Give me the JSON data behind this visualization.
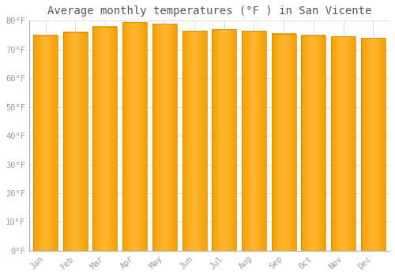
{
  "title": "Average monthly temperatures (°F ) in San Vicente",
  "months": [
    "Jan",
    "Feb",
    "Mar",
    "Apr",
    "May",
    "Jun",
    "Jul",
    "Aug",
    "Sep",
    "Oct",
    "Nov",
    "Dec"
  ],
  "values": [
    75,
    76,
    78,
    79.5,
    79,
    76.5,
    77,
    76.5,
    75.5,
    75,
    74.5,
    74
  ],
  "bar_color_light": "#FFB733",
  "bar_color_dark": "#F5A000",
  "bar_edge_color": "#C88000",
  "background_color": "#ffffff",
  "ylim": [
    0,
    80
  ],
  "yticks": [
    0,
    10,
    20,
    30,
    40,
    50,
    60,
    70,
    80
  ],
  "ylabel_suffix": "°F",
  "title_fontsize": 10,
  "tick_fontsize": 7.5,
  "grid_color": "#dddddd",
  "tick_color": "#999999",
  "spine_color": "#aaaaaa",
  "font_family": "monospace"
}
